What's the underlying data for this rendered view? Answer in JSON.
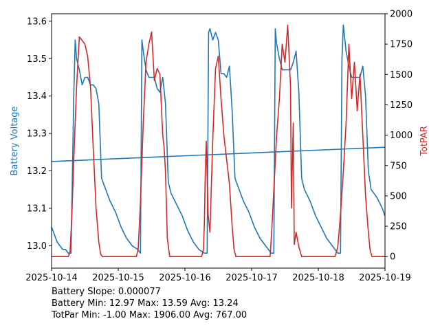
{
  "chart_data": {
    "type": "line",
    "title": "",
    "xlabel": "",
    "x_ticks": [
      "2025-10-14",
      "2025-10-15",
      "2025-10-16",
      "2025-10-17",
      "2025-10-18",
      "2025-10-19"
    ],
    "xlim": [
      "2025-10-14",
      "2025-10-19"
    ],
    "y_left": {
      "label": "Battery Voltage",
      "color": "#1f77b4",
      "ylim": [
        12.94,
        13.62
      ],
      "ticks": [
        13.0,
        13.1,
        13.2,
        13.3,
        13.4,
        13.5,
        13.6
      ],
      "tick_labels": [
        "13.0",
        "13.1",
        "13.2",
        "13.3",
        "13.4",
        "13.5",
        "13.6"
      ]
    },
    "y_right": {
      "label": "TotPAR",
      "color": "#d62728",
      "ylim": [
        -95,
        2000
      ],
      "ticks": [
        0,
        250,
        500,
        750,
        1000,
        1250,
        1500,
        1750,
        2000
      ],
      "tick_labels": [
        "0",
        "250",
        "500",
        "750",
        "1000",
        "1250",
        "1500",
        "1750",
        "2000"
      ]
    },
    "series": [
      {
        "axis": "left",
        "color": "#1f77b4",
        "x": [
          "2025-10-14 00:00",
          "2025-10-14 01:00",
          "2025-10-14 02:00",
          "2025-10-14 03:00",
          "2025-10-14 04:00",
          "2025-10-14 05:00",
          "2025-10-14 06:00",
          "2025-10-14 07:00",
          "2025-10-14 08:00",
          "2025-10-14 08:30",
          "2025-10-14 09:00",
          "2025-10-14 10:00",
          "2025-10-14 11:00",
          "2025-10-14 12:00",
          "2025-10-14 13:00",
          "2025-10-14 14:00",
          "2025-10-14 15:00",
          "2025-10-14 16:00",
          "2025-10-14 17:00",
          "2025-10-14 18:00",
          "2025-10-14 19:00",
          "2025-10-14 21:00",
          "2025-10-14 23:00",
          "2025-10-15 01:00",
          "2025-10-15 03:00",
          "2025-10-15 05:00",
          "2025-10-15 07:00",
          "2025-10-15 08:00",
          "2025-10-15 08:30",
          "2025-10-15 09:00",
          "2025-10-15 10:00",
          "2025-10-15 11:00",
          "2025-10-15 12:00",
          "2025-10-15 13:00",
          "2025-10-15 14:00",
          "2025-10-15 15:00",
          "2025-10-15 16:00",
          "2025-10-15 17:00",
          "2025-10-15 18:00",
          "2025-10-15 19:00",
          "2025-10-15 21:00",
          "2025-10-15 23:00",
          "2025-10-16 01:00",
          "2025-10-16 03:00",
          "2025-10-16 05:00",
          "2025-10-16 07:00",
          "2025-10-16 08:00",
          "2025-10-16 08:30",
          "2025-10-16 09:00",
          "2025-10-16 10:00",
          "2025-10-16 11:00",
          "2025-10-16 12:00",
          "2025-10-16 13:00",
          "2025-10-16 14:00",
          "2025-10-16 15:00",
          "2025-10-16 16:00",
          "2025-10-16 17:00",
          "2025-10-16 18:00",
          "2025-10-16 19:00",
          "2025-10-16 21:00",
          "2025-10-16 23:00",
          "2025-10-17 01:00",
          "2025-10-17 03:00",
          "2025-10-17 05:00",
          "2025-10-17 07:00",
          "2025-10-17 08:00",
          "2025-10-17 08:30",
          "2025-10-17 09:00",
          "2025-10-17 10:00",
          "2025-10-17 11:00",
          "2025-10-17 12:00",
          "2025-10-17 13:00",
          "2025-10-17 14:00",
          "2025-10-17 15:00",
          "2025-10-17 16:00",
          "2025-10-17 17:00",
          "2025-10-17 18:00",
          "2025-10-17 19:00",
          "2025-10-17 21:00",
          "2025-10-17 23:00",
          "2025-10-18 01:00",
          "2025-10-18 03:00",
          "2025-10-18 05:00",
          "2025-10-18 07:00",
          "2025-10-18 08:00",
          "2025-10-18 08:30",
          "2025-10-18 09:00",
          "2025-10-18 10:00",
          "2025-10-18 11:00",
          "2025-10-18 12:00",
          "2025-10-18 13:00",
          "2025-10-18 14:00",
          "2025-10-18 15:00",
          "2025-10-18 16:00",
          "2025-10-18 17:00",
          "2025-10-18 18:00",
          "2025-10-18 19:00",
          "2025-10-18 21:00",
          "2025-10-18 23:00",
          "2025-10-18 23:59"
        ],
        "y": [
          13.05,
          13.03,
          13.01,
          13.0,
          12.99,
          12.99,
          12.98,
          12.98,
          13.4,
          13.55,
          13.5,
          13.47,
          13.43,
          13.45,
          13.45,
          13.43,
          13.43,
          13.42,
          13.38,
          13.18,
          13.16,
          13.12,
          13.09,
          13.05,
          13.02,
          13.0,
          12.99,
          12.98,
          13.55,
          13.52,
          13.47,
          13.45,
          13.45,
          13.45,
          13.42,
          13.41,
          13.45,
          13.38,
          13.17,
          13.14,
          13.11,
          13.08,
          13.04,
          13.01,
          12.99,
          12.98,
          12.98,
          13.57,
          13.58,
          13.55,
          13.57,
          13.55,
          13.46,
          13.46,
          13.45,
          13.48,
          13.36,
          13.18,
          13.16,
          13.12,
          13.09,
          13.05,
          13.02,
          13.0,
          12.98,
          12.98,
          13.58,
          13.54,
          13.5,
          13.47,
          13.47,
          13.47,
          13.47,
          13.49,
          13.52,
          13.41,
          13.18,
          13.15,
          13.12,
          13.08,
          13.05,
          13.02,
          13.0,
          12.98,
          12.98,
          13.5,
          13.59,
          13.52,
          13.48,
          13.45,
          13.45,
          13.45,
          13.45,
          13.48,
          13.4,
          13.2,
          13.15,
          13.13,
          13.1,
          13.08
        ]
      },
      {
        "axis": "left",
        "color": "#1f77b4",
        "x": [
          "2025-10-14",
          "2025-10-19"
        ],
        "y": [
          13.225,
          13.263
        ]
      },
      {
        "axis": "right",
        "color": "#d62728",
        "x": [
          "2025-10-14 00:00",
          "2025-10-14 06:00",
          "2025-10-14 06:40",
          "2025-10-14 07:20",
          "2025-10-14 08:00",
          "2025-10-14 09:00",
          "2025-10-14 10:00",
          "2025-10-14 11:00",
          "2025-10-14 12:00",
          "2025-10-14 13:00",
          "2025-10-14 14:00",
          "2025-10-14 15:00",
          "2025-10-14 16:00",
          "2025-10-14 17:00",
          "2025-10-14 17:40",
          "2025-10-14 18:20",
          "2025-10-15 02:00",
          "2025-10-15 06:30",
          "2025-10-15 07:10",
          "2025-10-15 08:00",
          "2025-10-15 09:00",
          "2025-10-15 10:00",
          "2025-10-15 11:00",
          "2025-10-15 12:00",
          "2025-10-15 13:00",
          "2025-10-15 14:00",
          "2025-10-15 15:00",
          "2025-10-15 16:00",
          "2025-10-15 16:30",
          "2025-10-15 17:00",
          "2025-10-15 17:40",
          "2025-10-15 18:30",
          "2025-10-16 02:00",
          "2025-10-16 06:00",
          "2025-10-16 06:40",
          "2025-10-16 07:00",
          "2025-10-16 07:20",
          "2025-10-16 07:40",
          "2025-10-16 08:20",
          "2025-10-16 09:00",
          "2025-10-16 10:00",
          "2025-10-16 11:00",
          "2025-10-16 12:00",
          "2025-10-16 13:00",
          "2025-10-16 14:00",
          "2025-10-16 15:00",
          "2025-10-16 16:00",
          "2025-10-16 17:00",
          "2025-10-16 17:40",
          "2025-10-16 18:20",
          "2025-10-17 02:00",
          "2025-10-17 06:40",
          "2025-10-17 07:20",
          "2025-10-17 08:00",
          "2025-10-17 09:00",
          "2025-10-17 10:00",
          "2025-10-17 11:00",
          "2025-10-17 12:00",
          "2025-10-17 13:00",
          "2025-10-17 14:00",
          "2025-10-17 14:20",
          "2025-10-17 14:40",
          "2025-10-17 15:00",
          "2025-10-17 15:20",
          "2025-10-17 16:00",
          "2025-10-17 17:00",
          "2025-10-17 18:00",
          "2025-10-17 18:40",
          "2025-10-18 02:00",
          "2025-10-18 06:00",
          "2025-10-18 07:00",
          "2025-10-18 08:00",
          "2025-10-18 09:00",
          "2025-10-18 10:00",
          "2025-10-18 11:00",
          "2025-10-18 12:00",
          "2025-10-18 13:00",
          "2025-10-18 14:00",
          "2025-10-18 15:00",
          "2025-10-18 16:00",
          "2025-10-18 17:00",
          "2025-10-18 18:00",
          "2025-10-18 18:40",
          "2025-10-18 19:20",
          "2025-10-18 23:59"
        ],
        "y": [
          0,
          0,
          40,
          350,
          800,
          1400,
          1810,
          1780,
          1750,
          1650,
          1400,
          900,
          400,
          120,
          20,
          0,
          0,
          0,
          60,
          450,
          1100,
          1600,
          1750,
          1850,
          1450,
          1550,
          1500,
          1000,
          900,
          700,
          150,
          0,
          0,
          0,
          60,
          280,
          700,
          950,
          350,
          200,
          950,
          1550,
          1650,
          1300,
          1000,
          800,
          600,
          250,
          60,
          0,
          0,
          0,
          250,
          550,
          1000,
          1300,
          1750,
          1600,
          1906,
          1400,
          400,
          800,
          1100,
          100,
          200,
          80,
          0,
          0,
          0,
          0,
          80,
          350,
          700,
          1100,
          1750,
          1300,
          1600,
          1200,
          1500,
          1000,
          500,
          200,
          50,
          0,
          0
        ]
      }
    ]
  },
  "stats": {
    "line1": "Battery Slope: 0.000077",
    "line2": "Battery Min: 12.97 Max: 13.59 Avg: 13.24",
    "line3": "TotPar Min: -1.00 Max: 1906.00 Avg: 767.00"
  }
}
